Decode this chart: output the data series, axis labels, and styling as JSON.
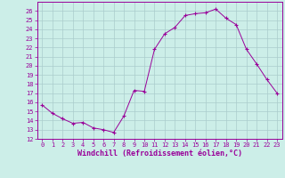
{
  "x": [
    0,
    1,
    2,
    3,
    4,
    5,
    6,
    7,
    8,
    9,
    10,
    11,
    12,
    13,
    14,
    15,
    16,
    17,
    18,
    19,
    20,
    21,
    22,
    23
  ],
  "y": [
    15.7,
    14.8,
    14.2,
    13.7,
    13.8,
    13.2,
    13.0,
    12.7,
    14.5,
    17.3,
    17.2,
    21.8,
    23.5,
    24.2,
    25.5,
    25.7,
    25.8,
    26.2,
    25.2,
    24.5,
    21.8,
    20.2,
    18.5,
    17.0
  ],
  "line_color": "#990099",
  "marker": "+",
  "marker_size": 3,
  "bg_color": "#cceee8",
  "grid_color": "#aacccc",
  "axis_color": "#990099",
  "xlabel": "Windchill (Refroidissement éolien,°C)",
  "xlabel_color": "#990099",
  "ylim": [
    12,
    27
  ],
  "xlim_min": -0.5,
  "xlim_max": 23.5,
  "yticks": [
    12,
    13,
    14,
    15,
    16,
    17,
    18,
    19,
    20,
    21,
    22,
    23,
    24,
    25,
    26
  ],
  "xticks": [
    0,
    1,
    2,
    3,
    4,
    5,
    6,
    7,
    8,
    9,
    10,
    11,
    12,
    13,
    14,
    15,
    16,
    17,
    18,
    19,
    20,
    21,
    22,
    23
  ],
  "tick_fontsize": 5,
  "xlabel_fontsize": 6
}
